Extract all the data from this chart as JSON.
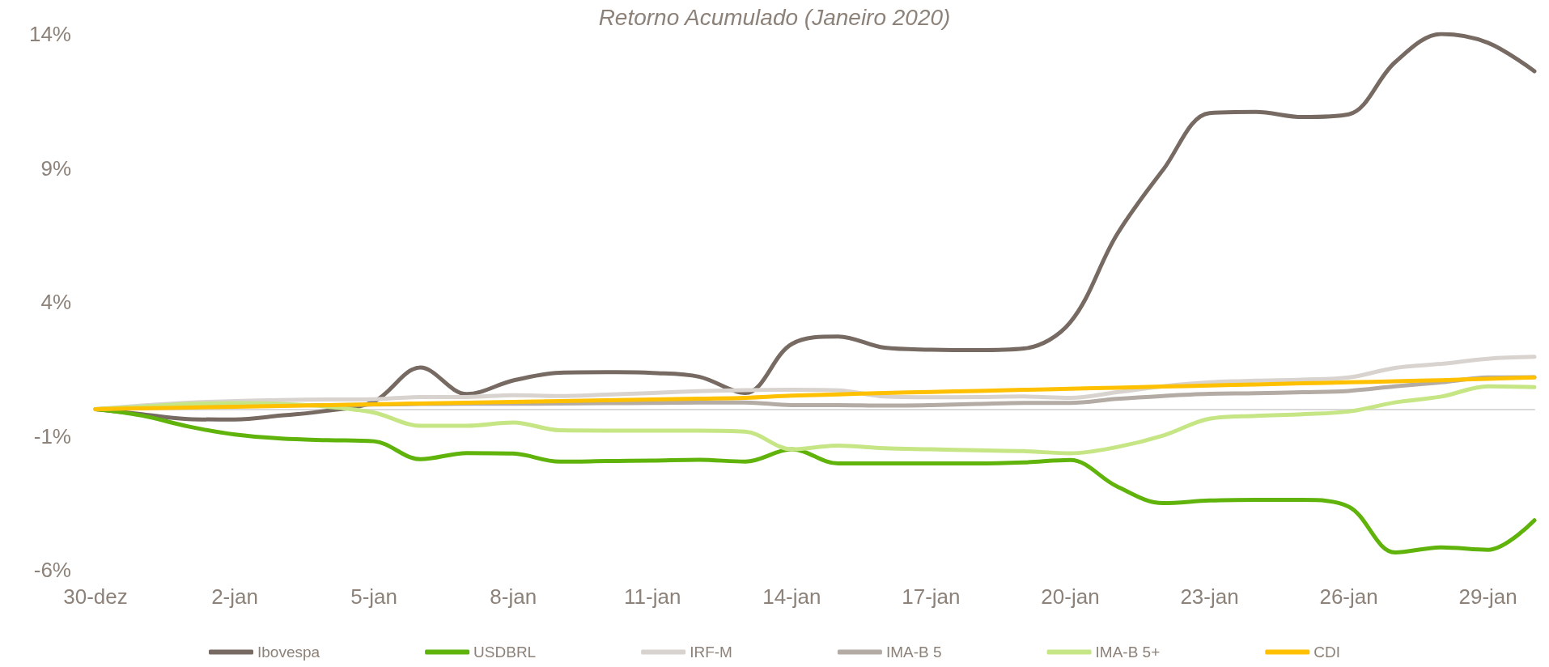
{
  "chart_data": {
    "type": "line",
    "title": "Retorno Acumulado (Janeiro 2020)",
    "categories": [
      "30-dez",
      null,
      null,
      "2-jan",
      null,
      null,
      "5-jan",
      null,
      null,
      "8-jan",
      null,
      null,
      "11-jan",
      null,
      null,
      "14-jan",
      null,
      null,
      "17-jan",
      null,
      null,
      "20-jan",
      null,
      null,
      "23-jan",
      null,
      null,
      "26-jan",
      null,
      null,
      "29-jan",
      null
    ],
    "series": [
      {
        "name": "Ibovespa",
        "color": "#766a62",
        "values": [
          0,
          -0.19,
          -0.37,
          -0.39,
          -0.24,
          -0.06,
          0.28,
          1.55,
          0.56,
          1.07,
          1.36,
          1.38,
          1.35,
          1.21,
          0.6,
          2.43,
          2.71,
          2.29,
          2.22,
          2.2,
          2.26,
          3.24,
          6.5,
          8.93,
          11.05,
          11.09,
          10.9,
          11.0,
          12.95,
          14.0,
          13.67,
          12.61
        ]
      },
      {
        "name": "USDBRL",
        "color": "#5fb30a",
        "values": [
          0,
          -0.24,
          -0.65,
          -0.95,
          -1.1,
          -1.16,
          -1.2,
          -1.87,
          -1.64,
          -1.66,
          -1.96,
          -1.94,
          -1.92,
          -1.89,
          -1.96,
          -1.5,
          -2.03,
          -2.03,
          -2.03,
          -2.03,
          -1.99,
          -1.9,
          -2.88,
          -3.51,
          -3.41,
          -3.39,
          -3.39,
          -3.64,
          -5.35,
          -5.16,
          -5.25,
          -4.15
        ]
      },
      {
        "name": "IRF-M",
        "color": "#d8d3ce",
        "values": [
          0,
          0.13,
          0.24,
          0.3,
          0.34,
          0.36,
          0.37,
          0.45,
          0.45,
          0.52,
          0.49,
          0.54,
          0.6,
          0.67,
          0.71,
          0.72,
          0.7,
          0.47,
          0.44,
          0.45,
          0.47,
          0.42,
          0.63,
          0.85,
          1.0,
          1.06,
          1.1,
          1.18,
          1.54,
          1.69,
          1.88,
          1.95
        ]
      },
      {
        "name": "IMA-B 5",
        "color": "#b3aba4",
        "values": [
          0,
          0.05,
          0.1,
          0.12,
          0.14,
          0.15,
          0.17,
          0.19,
          0.2,
          0.2,
          0.21,
          0.22,
          0.23,
          0.25,
          0.25,
          0.15,
          0.15,
          0.13,
          0.15,
          0.19,
          0.23,
          0.23,
          0.38,
          0.49,
          0.57,
          0.59,
          0.63,
          0.68,
          0.85,
          1.0,
          1.18,
          1.19
        ]
      },
      {
        "name": "IMA-B 5+",
        "color": "#c6e584",
        "values": [
          0,
          0.09,
          0.19,
          0.22,
          0.19,
          0.09,
          -0.13,
          -0.62,
          -0.62,
          -0.5,
          -0.79,
          -0.8,
          -0.8,
          -0.8,
          -0.84,
          -1.5,
          -1.36,
          -1.46,
          -1.5,
          -1.54,
          -1.57,
          -1.65,
          -1.42,
          -0.99,
          -0.36,
          -0.25,
          -0.19,
          -0.09,
          0.25,
          0.47,
          0.85,
          0.82
        ]
      },
      {
        "name": "CDI",
        "color": "#ffc000",
        "values": [
          0,
          0.03,
          0.06,
          0.09,
          0.12,
          0.15,
          0.18,
          0.21,
          0.24,
          0.27,
          0.3,
          0.33,
          0.36,
          0.39,
          0.42,
          0.5,
          0.55,
          0.6,
          0.64,
          0.68,
          0.72,
          0.76,
          0.8,
          0.84,
          0.88,
          0.92,
          0.96,
          1.0,
          1.04,
          1.08,
          1.13,
          1.18
        ]
      }
    ],
    "ylim": [
      -6,
      14
    ],
    "yticks": [
      {
        "value": -6,
        "label": "-6%"
      },
      {
        "value": -1,
        "label": "-1%"
      },
      {
        "value": 4,
        "label": "4%"
      },
      {
        "value": 9,
        "label": "9%"
      },
      {
        "value": 14,
        "label": "14%"
      }
    ],
    "grid": false,
    "legend": "bottom",
    "marker": "none",
    "line_style": "solid"
  }
}
